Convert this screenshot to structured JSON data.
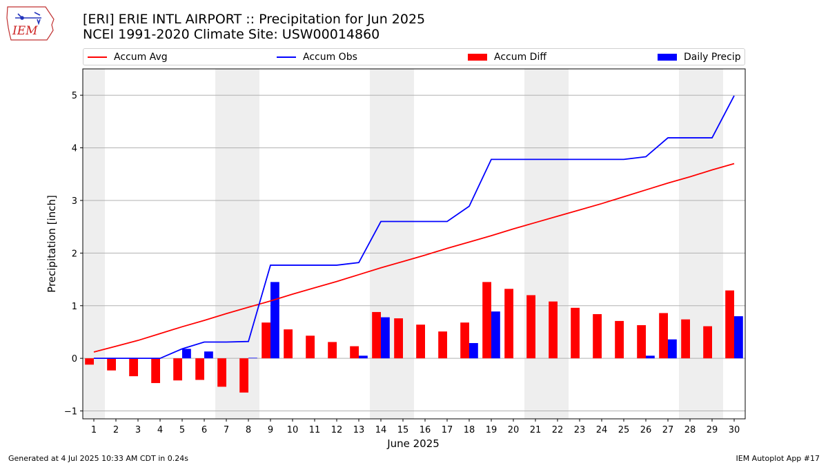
{
  "header": {
    "title_line1": "[ERI] ERIE INTL AIRPORT :: Precipitation for Jun 2025",
    "title_line2": "NCEI 1991-2020 Climate Site: USW00014860"
  },
  "logo": {
    "text": "IEM",
    "icon": "iem-iowa-logo"
  },
  "footer": {
    "generated": "Generated at 4 Jul 2025 10:33 AM CDT in 0.24s",
    "app": "IEM Autoplot App #17"
  },
  "chart_data": {
    "type": "bar",
    "xlabel": "June 2025",
    "ylabel": "Precipitation [inch]",
    "ylim": [
      -1.15,
      5.5
    ],
    "yticks": [
      -1,
      0,
      1,
      2,
      3,
      4,
      5
    ],
    "ytick_labels": [
      "−1",
      "0",
      "1",
      "2",
      "3",
      "4",
      "5"
    ],
    "xlim": [
      0.5,
      30.5
    ],
    "categories": [
      "1",
      "2",
      "3",
      "4",
      "5",
      "6",
      "7",
      "8",
      "9",
      "10",
      "11",
      "12",
      "13",
      "14",
      "15",
      "16",
      "17",
      "18",
      "19",
      "20",
      "21",
      "22",
      "23",
      "24",
      "25",
      "26",
      "27",
      "28",
      "29",
      "30"
    ],
    "grid": "horizontal",
    "legend_position": "top",
    "weekend_shading": [
      [
        0.5,
        1.5
      ],
      [
        6.5,
        8.5
      ],
      [
        13.5,
        15.5
      ],
      [
        20.5,
        22.5
      ],
      [
        27.5,
        29.5
      ]
    ],
    "series": [
      {
        "name": "Accum Avg",
        "kind": "line",
        "color": "#ff0000",
        "values": [
          0.12,
          0.23,
          0.34,
          0.47,
          0.6,
          0.72,
          0.85,
          0.97,
          1.09,
          1.22,
          1.34,
          1.46,
          1.59,
          1.72,
          1.84,
          1.96,
          2.09,
          2.21,
          2.33,
          2.46,
          2.58,
          2.7,
          2.82,
          2.94,
          3.07,
          3.2,
          3.33,
          3.45,
          3.58,
          3.7
        ]
      },
      {
        "name": "Accum Obs",
        "kind": "line",
        "color": "#0000ff",
        "values": [
          0,
          0,
          0,
          0,
          0.18,
          0.31,
          0.31,
          0.32,
          1.77,
          1.77,
          1.77,
          1.77,
          1.82,
          2.6,
          2.6,
          2.6,
          2.6,
          2.89,
          3.78,
          3.78,
          3.78,
          3.78,
          3.78,
          3.78,
          3.78,
          3.83,
          4.19,
          4.19,
          4.19,
          4.99
        ]
      },
      {
        "name": "Accum Diff",
        "kind": "bar",
        "color": "#ff0000",
        "values": [
          -0.12,
          -0.23,
          -0.34,
          -0.47,
          -0.42,
          -0.41,
          -0.54,
          -0.65,
          0.68,
          0.55,
          0.43,
          0.31,
          0.23,
          0.88,
          0.76,
          0.64,
          0.51,
          0.68,
          1.45,
          1.32,
          1.2,
          1.08,
          0.96,
          0.84,
          0.71,
          0.63,
          0.86,
          0.74,
          0.61,
          1.29
        ]
      },
      {
        "name": "Daily Precip",
        "kind": "bar",
        "color": "#0000ff",
        "values": [
          0,
          0,
          0,
          0,
          0.18,
          0.13,
          0,
          0.01,
          1.45,
          0,
          0,
          0,
          0.05,
          0.78,
          0,
          0,
          0,
          0.29,
          0.89,
          0,
          0,
          0,
          0,
          0,
          0,
          0.05,
          0.36,
          0,
          0,
          0.8
        ]
      }
    ]
  }
}
